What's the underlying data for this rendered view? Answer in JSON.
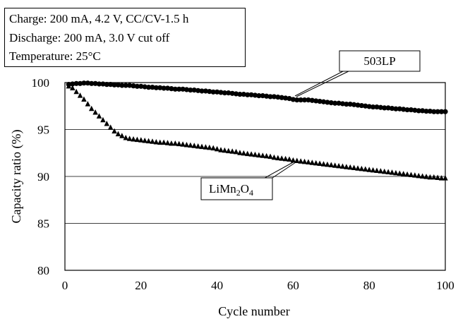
{
  "conditions": [
    "Charge: 200 mA, 4.2 V, CC/CV-1.5 h",
    "Discharge: 200 mA, 3.0 V cut off",
    "Temperature: 25°C"
  ],
  "chart_data": {
    "type": "scatter",
    "xlabel": "Cycle number",
    "ylabel": "Capacity ratio (%)",
    "xlim": [
      0,
      100
    ],
    "ylim": [
      80,
      100
    ],
    "x_ticks": [
      0,
      20,
      40,
      60,
      80,
      100
    ],
    "y_ticks": [
      80,
      85,
      90,
      95,
      100
    ],
    "grid": "horizontal",
    "series": [
      {
        "name": "503LP",
        "marker": "circle",
        "color": "#000000",
        "x": [
          1,
          2,
          3,
          4,
          5,
          6,
          7,
          8,
          9,
          10,
          11,
          12,
          13,
          14,
          15,
          16,
          17,
          18,
          19,
          20,
          21,
          22,
          23,
          24,
          25,
          26,
          27,
          28,
          29,
          30,
          31,
          32,
          33,
          34,
          35,
          36,
          37,
          38,
          39,
          40,
          41,
          42,
          43,
          44,
          45,
          46,
          47,
          48,
          49,
          50,
          51,
          52,
          53,
          54,
          55,
          56,
          57,
          58,
          59,
          60,
          61,
          62,
          63,
          64,
          65,
          66,
          67,
          68,
          69,
          70,
          71,
          72,
          73,
          74,
          75,
          76,
          77,
          78,
          79,
          80,
          81,
          82,
          83,
          84,
          85,
          86,
          87,
          88,
          89,
          90,
          91,
          92,
          93,
          94,
          95,
          96,
          97,
          98,
          99,
          100
        ],
        "values": [
          99.8,
          99.85,
          99.9,
          99.9,
          99.95,
          99.95,
          99.9,
          99.9,
          99.85,
          99.85,
          99.8,
          99.8,
          99.75,
          99.75,
          99.7,
          99.7,
          99.7,
          99.65,
          99.6,
          99.6,
          99.55,
          99.5,
          99.5,
          99.45,
          99.45,
          99.4,
          99.4,
          99.35,
          99.3,
          99.3,
          99.3,
          99.25,
          99.2,
          99.2,
          99.15,
          99.1,
          99.1,
          99.05,
          99.0,
          99.0,
          98.95,
          98.9,
          98.9,
          98.85,
          98.8,
          98.75,
          98.75,
          98.7,
          98.7,
          98.65,
          98.6,
          98.6,
          98.55,
          98.5,
          98.5,
          98.45,
          98.4,
          98.35,
          98.3,
          98.2,
          98.15,
          98.15,
          98.15,
          98.15,
          98.1,
          98.05,
          98.0,
          97.95,
          97.9,
          97.85,
          97.8,
          97.8,
          97.75,
          97.7,
          97.7,
          97.65,
          97.6,
          97.55,
          97.5,
          97.45,
          97.4,
          97.4,
          97.35,
          97.3,
          97.3,
          97.25,
          97.2,
          97.2,
          97.15,
          97.1,
          97.1,
          97.05,
          97.0,
          97.0,
          96.95,
          96.95,
          96.9,
          96.9,
          96.9,
          96.9
        ]
      },
      {
        "name": "LiMn2O4",
        "marker": "triangle",
        "color": "#000000",
        "x": [
          1,
          2,
          3,
          4,
          5,
          6,
          7,
          8,
          9,
          10,
          11,
          12,
          13,
          14,
          15,
          16,
          17,
          18,
          19,
          20,
          21,
          22,
          23,
          24,
          25,
          26,
          27,
          28,
          29,
          30,
          31,
          32,
          33,
          34,
          35,
          36,
          37,
          38,
          39,
          40,
          41,
          42,
          43,
          44,
          45,
          46,
          47,
          48,
          49,
          50,
          51,
          52,
          53,
          54,
          55,
          56,
          57,
          58,
          59,
          60,
          61,
          62,
          63,
          64,
          65,
          66,
          67,
          68,
          69,
          70,
          71,
          72,
          73,
          74,
          75,
          76,
          77,
          78,
          79,
          80,
          81,
          82,
          83,
          84,
          85,
          86,
          87,
          88,
          89,
          90,
          91,
          92,
          93,
          94,
          95,
          96,
          97,
          98,
          99,
          100
        ],
        "values": [
          99.6,
          99.4,
          99.0,
          98.6,
          98.2,
          97.7,
          97.2,
          96.8,
          96.4,
          96.0,
          95.6,
          95.2,
          94.8,
          94.5,
          94.3,
          94.1,
          94.0,
          93.95,
          93.9,
          93.85,
          93.8,
          93.75,
          93.7,
          93.65,
          93.6,
          93.6,
          93.55,
          93.5,
          93.5,
          93.45,
          93.4,
          93.35,
          93.3,
          93.25,
          93.2,
          93.15,
          93.1,
          93.05,
          93.0,
          92.9,
          92.8,
          92.75,
          92.7,
          92.65,
          92.6,
          92.5,
          92.45,
          92.4,
          92.35,
          92.3,
          92.25,
          92.2,
          92.15,
          92.1,
          92.0,
          91.95,
          91.9,
          91.85,
          91.8,
          91.7,
          91.65,
          91.6,
          91.55,
          91.5,
          91.45,
          91.4,
          91.35,
          91.3,
          91.25,
          91.2,
          91.15,
          91.1,
          91.05,
          91.0,
          90.95,
          90.9,
          90.85,
          90.8,
          90.75,
          90.7,
          90.65,
          90.6,
          90.55,
          90.5,
          90.45,
          90.4,
          90.35,
          90.3,
          90.25,
          90.2,
          90.15,
          90.1,
          90.05,
          90.0,
          89.95,
          89.9,
          89.9,
          89.85,
          89.8,
          89.8
        ]
      }
    ],
    "annotations": [
      {
        "text": "503LP",
        "target_series": "503LP"
      },
      {
        "text": "LiMn2O4",
        "display_main": "LiMn",
        "display_sub1": "2",
        "display_mid": "O",
        "display_sub2": "4",
        "target_series": "LiMn2O4"
      }
    ]
  }
}
